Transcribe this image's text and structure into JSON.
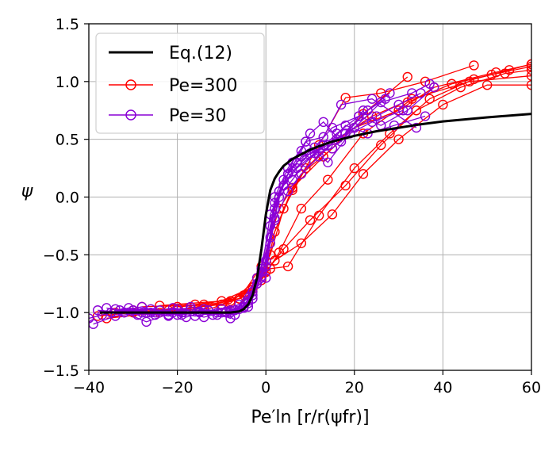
{
  "chart_data": {
    "type": "line",
    "title": "",
    "xlabel": "Pe′ln [r/r(ψfr)]",
    "ylabel": "ψ",
    "xlim": [
      -40,
      60
    ],
    "ylim": [
      -1.5,
      1.5
    ],
    "xticks": [
      -40,
      -20,
      0,
      20,
      40,
      60
    ],
    "yticks": [
      -1.5,
      -1.0,
      -0.5,
      0.0,
      0.5,
      1.0,
      1.5
    ],
    "xtick_labels": [
      "−40",
      "−20",
      "0",
      "20",
      "40",
      "60"
    ],
    "ytick_labels": [
      "−1.5",
      "−1.0",
      "−0.5",
      "0.0",
      "0.5",
      "1.0",
      "1.5"
    ],
    "grid": true,
    "legend_position": "top-left",
    "legend": [
      "Eq.(12)",
      "Pe=300",
      "Pe=30"
    ],
    "colors": {
      "eq": "#000000",
      "pe300": "#ff0000",
      "pe30": "#8a00d6"
    },
    "series": [
      {
        "name": "Eq.(12)",
        "kind": "curve",
        "color": "#000000",
        "x": [
          -37.5,
          -30,
          -20,
          -12,
          -8,
          -6,
          -5,
          -4,
          -3,
          -2,
          -1,
          0,
          1,
          2,
          3,
          4,
          5,
          6,
          8,
          10,
          12,
          15,
          20,
          25,
          30,
          35,
          40,
          50,
          60
        ],
        "y": [
          -1.0,
          -1.0,
          -1.0,
          -1.0,
          -1.0,
          -0.99,
          -0.97,
          -0.93,
          -0.85,
          -0.7,
          -0.45,
          -0.15,
          0.06,
          0.16,
          0.22,
          0.27,
          0.3,
          0.33,
          0.37,
          0.41,
          0.44,
          0.48,
          0.53,
          0.57,
          0.6,
          0.63,
          0.655,
          0.69,
          0.72
        ]
      },
      {
        "name": "Pe=300",
        "kind": "markers",
        "color": "#ff0000",
        "runs": [
          {
            "x": [
              -38,
              -30,
              -20,
              -8,
              -2,
              2,
              8,
              15,
              22,
              30,
              40,
              50,
              60
            ],
            "y": [
              -1.03,
              -1.0,
              -0.98,
              -0.9,
              -0.75,
              -0.55,
              -0.4,
              -0.15,
              0.2,
              0.5,
              0.8,
              0.97,
              0.97
            ]
          },
          {
            "x": [
              -36,
              -24,
              -12,
              -4,
              0,
              4,
              10,
              18,
              26,
              34,
              44,
              54,
              60
            ],
            "y": [
              -1.05,
              -1.0,
              -0.96,
              -0.85,
              -0.65,
              -0.45,
              -0.2,
              0.1,
              0.45,
              0.75,
              0.95,
              1.07,
              1.1
            ]
          },
          {
            "x": [
              -34,
              -22,
              -10,
              -3,
              1,
              5,
              12,
              20,
              28,
              37,
              47,
              55,
              60
            ],
            "y": [
              -1.0,
              -0.98,
              -0.93,
              -0.8,
              -0.62,
              -0.6,
              -0.16,
              0.25,
              0.55,
              0.85,
              1.02,
              1.1,
              1.15
            ]
          },
          {
            "x": [
              -30,
              -18,
              -6,
              -1,
              3,
              8,
              14,
              22,
              32,
              42,
              51,
              60
            ],
            "y": [
              -0.98,
              -0.97,
              -0.88,
              -0.72,
              -0.48,
              -0.1,
              0.15,
              0.55,
              0.82,
              0.98,
              1.06,
              1.13
            ]
          },
          {
            "x": [
              -28,
              -14,
              -5,
              0,
              2,
              6,
              13,
              20,
              30,
              38,
              52,
              60
            ],
            "y": [
              -0.95,
              -0.93,
              -0.85,
              -0.64,
              -0.3,
              0.08,
              0.35,
              0.6,
              0.75,
              0.95,
              1.08,
              1.15
            ]
          },
          {
            "x": [
              -24,
              -10,
              -3,
              1,
              4,
              9,
              16,
              24,
              33,
              46,
              60
            ],
            "y": [
              -0.94,
              -0.9,
              -0.78,
              -0.5,
              -0.1,
              0.25,
              0.5,
              0.7,
              0.85,
              1.0,
              1.05
            ]
          },
          {
            "x": [
              -20,
              -8,
              -2,
              2,
              6,
              12,
              18,
              26,
              36,
              47
            ],
            "y": [
              -0.95,
              -0.92,
              -0.7,
              -0.3,
              0.06,
              0.45,
              0.86,
              0.9,
              1.0,
              1.14
            ]
          },
          {
            "x": [
              -16,
              -6,
              -1,
              3,
              8,
              15,
              22,
              32
            ],
            "y": [
              -0.93,
              -0.88,
              -0.6,
              -0.1,
              0.2,
              0.42,
              0.72,
              1.04
            ]
          }
        ]
      },
      {
        "name": "Pe=30",
        "kind": "markers",
        "color": "#8a00d6",
        "runs": [
          {
            "x": [
              -40,
              -35,
              -30,
              -25,
              -20,
              -15,
              -10,
              -6,
              -3,
              0,
              2,
              5,
              8,
              12,
              16,
              20,
              25,
              30,
              35
            ],
            "y": [
              -1.05,
              -1.0,
              -0.98,
              -1.0,
              -1.02,
              -0.99,
              -1.0,
              -0.97,
              -0.85,
              -0.6,
              -0.2,
              0.05,
              0.2,
              0.35,
              0.5,
              0.6,
              0.7,
              0.8,
              0.9
            ]
          },
          {
            "x": [
              -39,
              -34,
              -28,
              -22,
              -17,
              -12,
              -8,
              -4,
              -1,
              1,
              3,
              6,
              9,
              13,
              18,
              23,
              28
            ],
            "y": [
              -1.1,
              -1.03,
              -1.0,
              -1.03,
              -0.97,
              -1.02,
              -0.98,
              -0.92,
              -0.7,
              -0.35,
              0.0,
              0.15,
              0.3,
              0.45,
              0.55,
              0.75,
              0.9
            ]
          },
          {
            "x": [
              -38,
              -32,
              -27,
              -21,
              -16,
              -11,
              -7,
              -3,
              0,
              2,
              4,
              7,
              11,
              15,
              20,
              26,
              33,
              37
            ],
            "y": [
              -0.98,
              -1.0,
              -1.08,
              -1.0,
              -1.03,
              -1.0,
              -1.02,
              -0.88,
              -0.55,
              -0.1,
              0.1,
              0.25,
              0.38,
              0.42,
              0.6,
              0.82,
              0.9,
              0.98
            ]
          },
          {
            "x": [
              -37,
              -31,
              -26,
              -20,
              -14,
              -9,
              -5,
              -2,
              1,
              3,
              5,
              8,
              12,
              16,
              21,
              27
            ],
            "y": [
              -1.02,
              -0.96,
              -1.0,
              -0.97,
              -1.04,
              -0.99,
              -0.95,
              -0.75,
              -0.25,
              0.05,
              0.2,
              0.35,
              0.4,
              0.55,
              0.7,
              0.85
            ]
          },
          {
            "x": [
              -36,
              -29,
              -24,
              -18,
              -13,
              -8,
              -4,
              -1,
              1,
              4,
              6,
              9,
              14,
              19,
              24,
              31
            ],
            "y": [
              -0.96,
              -1.02,
              -0.98,
              -1.04,
              -0.98,
              -1.05,
              -0.9,
              -0.65,
              -0.15,
              0.1,
              0.3,
              0.48,
              0.3,
              0.55,
              0.65,
              0.75
            ]
          },
          {
            "x": [
              -35,
              -28,
              -22,
              -17,
              -11,
              -7,
              -3,
              0,
              2,
              5,
              8,
              10,
              13,
              17,
              22
            ],
            "y": [
              -1.0,
              -0.95,
              -1.02,
              -0.95,
              -1.02,
              -0.98,
              -0.82,
              -0.7,
              -0.05,
              0.2,
              0.4,
              0.55,
              0.65,
              0.48,
              0.75
            ]
          },
          {
            "x": [
              -34,
              -27,
              -21,
              -15,
              -10,
              -6,
              -2,
              1,
              3,
              6,
              10,
              14,
              18,
              23,
              29,
              36
            ],
            "y": [
              -0.97,
              -1.0,
              -0.96,
              -1.0,
              -0.97,
              -0.93,
              -0.7,
              -0.4,
              0.05,
              0.22,
              0.38,
              0.45,
              0.62,
              0.55,
              0.62,
              0.7
            ]
          },
          {
            "x": [
              -33,
              -26,
              -19,
              -14,
              -9,
              -5,
              -1,
              2,
              4,
              7,
              11,
              15,
              21,
              26,
              32,
              38
            ],
            "y": [
              -0.98,
              -0.97,
              -1.02,
              -0.97,
              -1.0,
              -0.96,
              -0.62,
              -0.18,
              0.15,
              0.3,
              0.43,
              0.6,
              0.7,
              0.62,
              0.75,
              0.95
            ]
          },
          {
            "x": [
              -32,
              -25,
              -19,
              -13,
              -8,
              -4,
              0,
              2,
              5,
              9,
              13,
              17,
              24,
              34
            ],
            "y": [
              -1.0,
              -1.02,
              -1.0,
              -0.98,
              -1.0,
              -0.95,
              -0.6,
              0.0,
              0.25,
              0.48,
              0.52,
              0.8,
              0.85,
              0.6
            ]
          }
        ]
      }
    ]
  }
}
